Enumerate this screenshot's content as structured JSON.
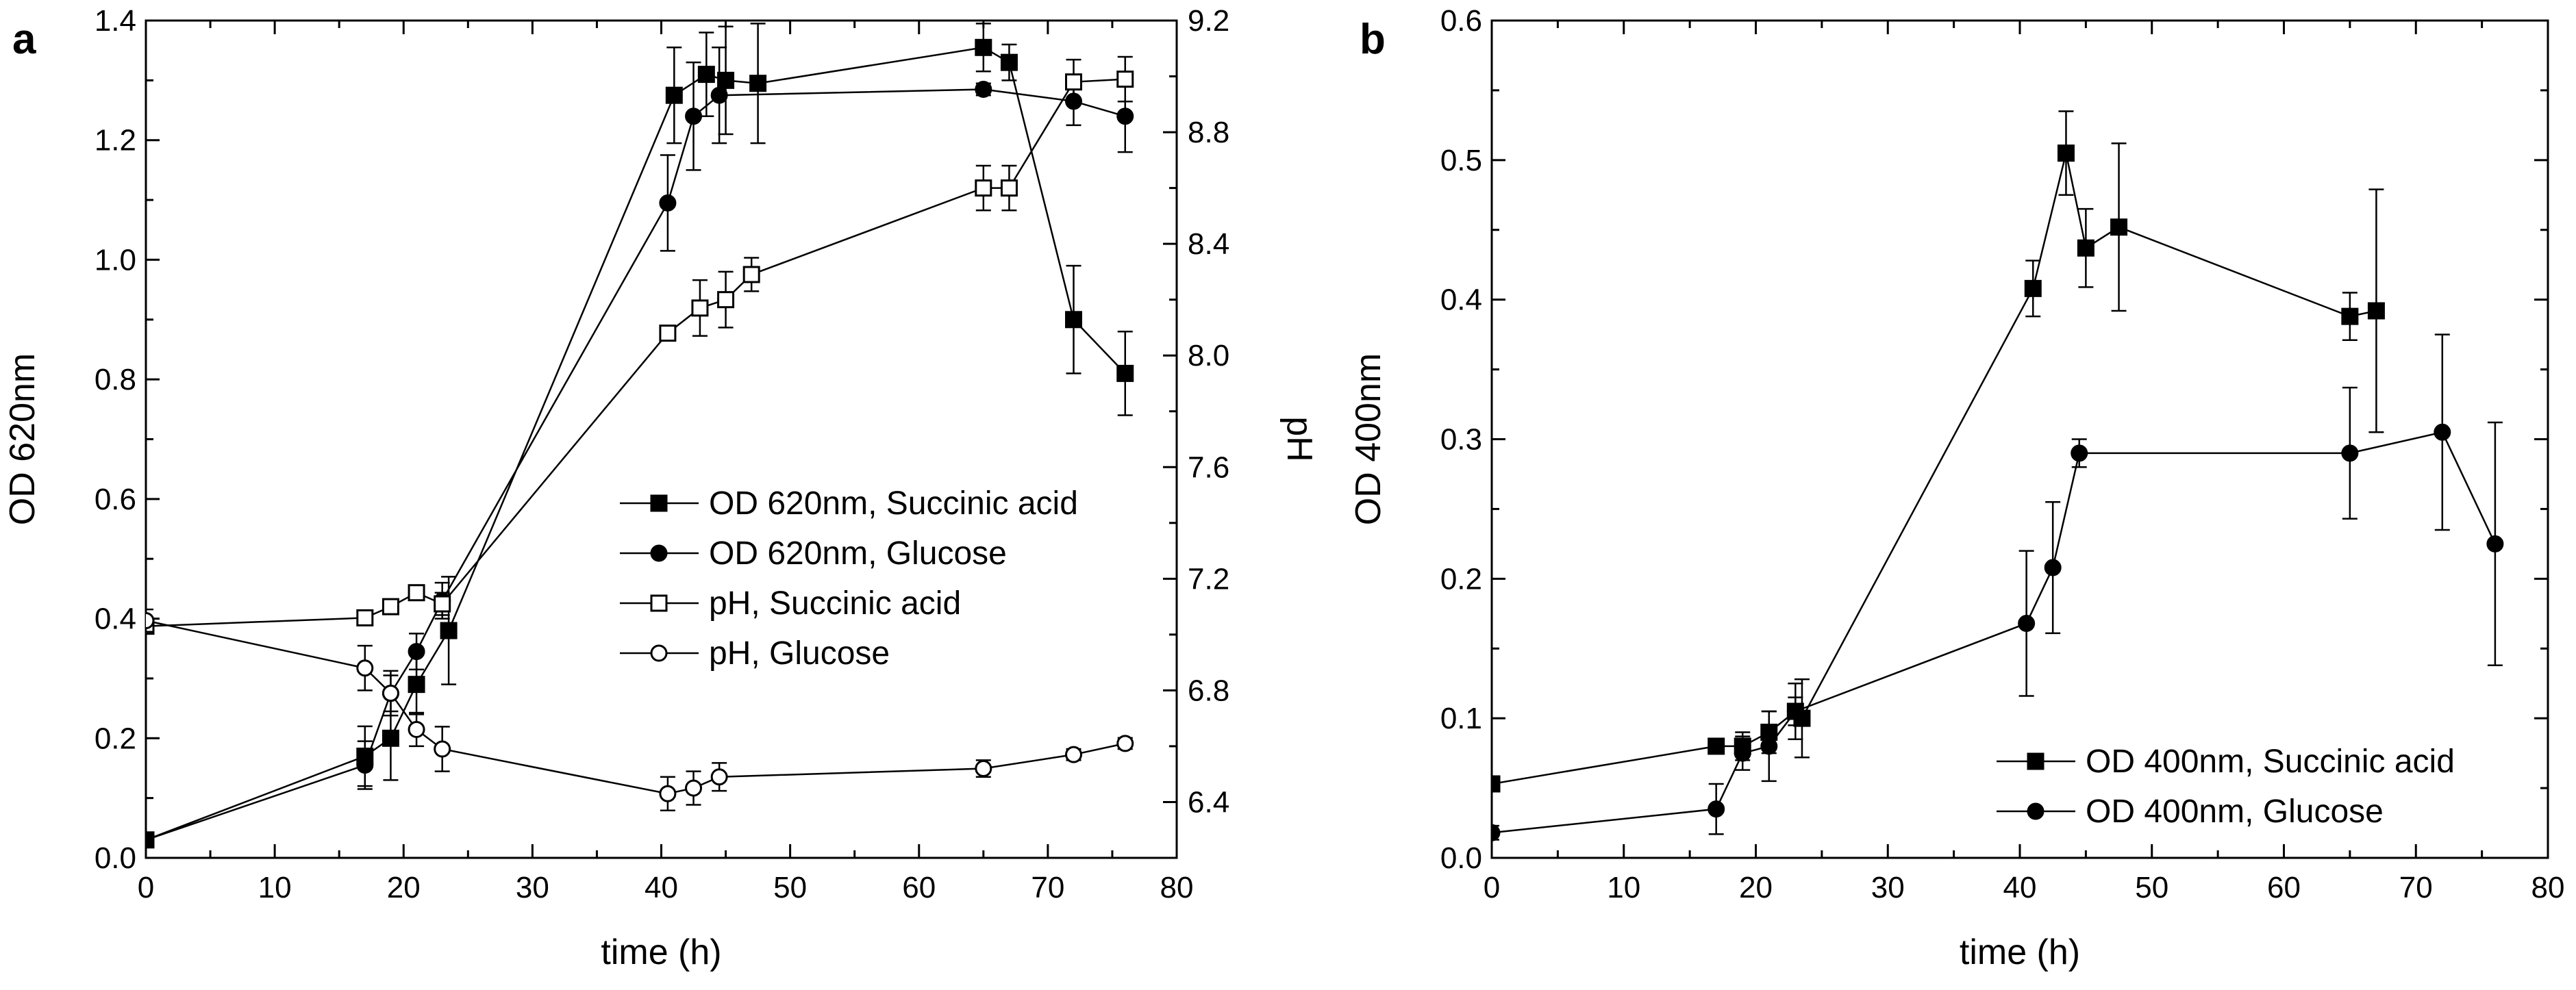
{
  "chart_data": [
    {
      "panel": "a",
      "type": "line",
      "xlabel": "time (h)",
      "ylabel": "OD 620nm",
      "y2label": "pH",
      "xlim": [
        0,
        80
      ],
      "ylim": [
        0,
        1.4
      ],
      "y2lim": [
        6.2,
        9.2
      ],
      "xticks": [
        "0",
        "10",
        "20",
        "30",
        "40",
        "50",
        "60",
        "70",
        "80"
      ],
      "yticks": [
        "0.0",
        "0.2",
        "0.4",
        "0.6",
        "0.8",
        "1.0",
        "1.2",
        "1.4"
      ],
      "y2ticks": [
        "6.4",
        "6.8",
        "7.2",
        "7.6",
        "8.0",
        "8.4",
        "8.8",
        "9.2"
      ],
      "legend_position": "center-right",
      "series": [
        {
          "name": "OD 620nm, Succinic acid",
          "marker": "square-filled",
          "axis": "left",
          "x": [
            0,
            17,
            19,
            21,
            23.5,
            41,
            43.5,
            45,
            47.5,
            65,
            67,
            72,
            76
          ],
          "y": [
            0.03,
            0.17,
            0.2,
            0.29,
            0.38,
            1.275,
            1.31,
            1.3,
            1.295,
            1.355,
            1.33,
            0.9,
            0.81
          ],
          "err": [
            0.01,
            0.05,
            0.07,
            0.05,
            0.09,
            0.08,
            0.07,
            0.09,
            0.1,
            0.04,
            0.03,
            0.09,
            0.07
          ]
        },
        {
          "name": "OD 620nm, Glucose",
          "marker": "circle-filled",
          "axis": "left",
          "x": [
            0,
            17,
            19,
            21,
            23,
            40.5,
            42.5,
            44.5,
            65,
            72,
            76
          ],
          "y": [
            0.03,
            0.155,
            0.275,
            0.345,
            0.43,
            1.095,
            1.24,
            1.275,
            1.285,
            1.265,
            1.24
          ],
          "err": [
            0.01,
            0.04,
            0.03,
            0.03,
            0.03,
            0.08,
            0.09,
            0.08,
            0.01,
            0.04,
            0.06
          ]
        },
        {
          "name": "pH, Succinic acid",
          "marker": "square-open",
          "axis": "right",
          "x": [
            0,
            17,
            19,
            21,
            23,
            40.5,
            43,
            45,
            47,
            65,
            67,
            72,
            76
          ],
          "y": [
            7.03,
            7.06,
            7.1,
            7.15,
            7.11,
            8.08,
            8.17,
            8.2,
            8.29,
            8.6,
            8.6,
            8.98,
            8.99
          ],
          "err": [
            0.02,
            0.02,
            0.02,
            0.02,
            0.04,
            0.02,
            0.1,
            0.1,
            0.06,
            0.08,
            0.08,
            0.08,
            0.08
          ]
        },
        {
          "name": "pH, Glucose",
          "marker": "circle-open",
          "axis": "right",
          "x": [
            0,
            17,
            19,
            21,
            23,
            40.5,
            42.5,
            44.5,
            65,
            72,
            76
          ],
          "y": [
            7.05,
            6.88,
            6.79,
            6.66,
            6.59,
            6.43,
            6.45,
            6.49,
            6.52,
            6.57,
            6.61
          ],
          "err": [
            0.04,
            0.08,
            0.08,
            0.06,
            0.08,
            0.06,
            0.06,
            0.05,
            0.03,
            0.02,
            0.02
          ]
        }
      ]
    },
    {
      "panel": "b",
      "type": "line",
      "xlabel": "time (h)",
      "ylabel": "OD 400nm",
      "xlim": [
        0,
        80
      ],
      "ylim": [
        0,
        0.6
      ],
      "xticks": [
        "0",
        "10",
        "20",
        "30",
        "40",
        "50",
        "60",
        "70",
        "80"
      ],
      "yticks": [
        "0.0",
        "0.1",
        "0.2",
        "0.3",
        "0.4",
        "0.5",
        "0.6"
      ],
      "legend_position": "bottom-right",
      "series": [
        {
          "name": "OD 400nm, Succinic acid",
          "marker": "square-filled",
          "axis": "left",
          "x": [
            0,
            17,
            19,
            21,
            23,
            23.5,
            41,
            43.5,
            45,
            47.5,
            65,
            67
          ],
          "y": [
            0.053,
            0.08,
            0.08,
            0.09,
            0.105,
            0.1,
            0.408,
            0.505,
            0.437,
            0.452,
            0.388,
            0.392
          ],
          "err": [
            0.005,
            0.005,
            0.01,
            0.015,
            0.02,
            0.028,
            0.02,
            0.03,
            0.028,
            0.06,
            0.017,
            0.087
          ]
        },
        {
          "name": "OD 400nm, Glucose",
          "marker": "circle-filled",
          "axis": "left",
          "x": [
            0,
            17,
            19,
            21,
            23,
            40.5,
            42.5,
            44.5,
            65,
            72,
            76
          ],
          "y": [
            0.018,
            0.035,
            0.075,
            0.08,
            0.105,
            0.168,
            0.208,
            0.29,
            0.29,
            0.305,
            0.225
          ],
          "err": [
            0.005,
            0.018,
            0.012,
            0.025,
            0.01,
            0.052,
            0.047,
            0.01,
            0.047,
            0.07,
            0.087
          ]
        }
      ]
    }
  ]
}
